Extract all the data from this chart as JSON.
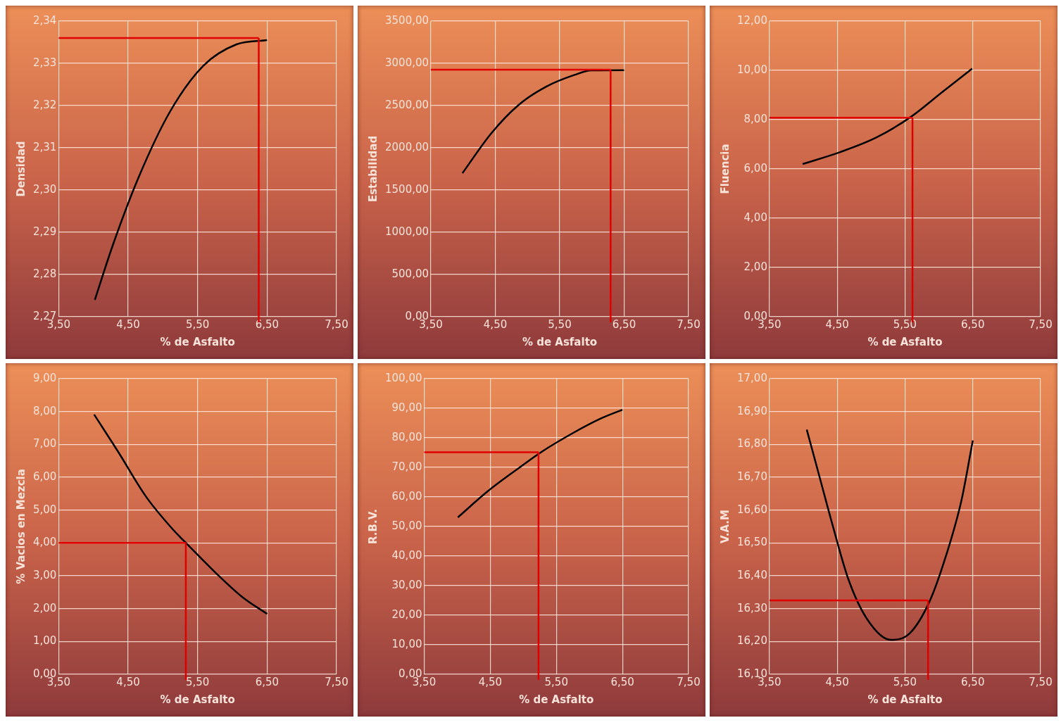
{
  "chart_data": [
    {
      "type": "line",
      "xlabel": "% de Asfalto",
      "ylabel": "Densidad",
      "x": [
        4.02,
        4.28,
        4.65,
        5.1,
        5.58,
        6.06,
        6.5
      ],
      "values": [
        2.274,
        2.287,
        2.303,
        2.3185,
        2.3294,
        2.3345,
        2.3355
      ],
      "color": "#000000",
      "marker": "none",
      "grid": true,
      "xlim": [
        3.5,
        7.5
      ],
      "xticks": [
        {
          "value": 3.5,
          "label": "3,50"
        },
        {
          "value": 4.5,
          "label": "4,50"
        },
        {
          "value": 5.5,
          "label": "5,50"
        },
        {
          "value": 6.5,
          "label": "6,50"
        },
        {
          "value": 7.5,
          "label": "7,50"
        }
      ],
      "ylim": [
        2.27,
        2.34
      ],
      "yticks": [
        {
          "value": 2.27,
          "label": "2,27"
        },
        {
          "value": 2.28,
          "label": "2,28"
        },
        {
          "value": 2.29,
          "label": "2,29"
        },
        {
          "value": 2.3,
          "label": "2,30"
        },
        {
          "value": 2.31,
          "label": "2,31"
        },
        {
          "value": 2.32,
          "label": "2,32"
        },
        {
          "value": 2.33,
          "label": "2,33"
        },
        {
          "value": 2.34,
          "label": "2,34"
        }
      ],
      "ref_lines": [
        {
          "axis": "y",
          "value": 2.336,
          "color": "#e00000"
        },
        {
          "axis": "x",
          "value": 6.38,
          "color": "#e00000"
        }
      ]
    },
    {
      "type": "line",
      "xlabel": "% de Asfalto",
      "ylabel": "Estabilidad",
      "x": [
        3.99,
        4.43,
        4.86,
        5.29,
        5.73,
        5.99,
        6.5
      ],
      "values": [
        1700,
        2165,
        2506,
        2724,
        2863,
        2916,
        2919
      ],
      "color": "#000000",
      "marker": "none",
      "grid": true,
      "xlim": [
        3.5,
        7.5
      ],
      "xticks": [
        {
          "value": 3.5,
          "label": "3,50"
        },
        {
          "value": 4.5,
          "label": "4,50"
        },
        {
          "value": 5.5,
          "label": "5,50"
        },
        {
          "value": 6.5,
          "label": "6,50"
        },
        {
          "value": 7.5,
          "label": "7,50"
        }
      ],
      "ylim": [
        0,
        3500
      ],
      "yticks": [
        {
          "value": 0,
          "label": "0,00"
        },
        {
          "value": 500,
          "label": "500,00"
        },
        {
          "value": 1000,
          "label": "1000,00"
        },
        {
          "value": 1500,
          "label": "1500,00"
        },
        {
          "value": 2000,
          "label": "2000,00"
        },
        {
          "value": 2500,
          "label": "2500,00"
        },
        {
          "value": 3000,
          "label": "3000,00"
        },
        {
          "value": 3500,
          "label": "3500,00"
        }
      ],
      "ref_lines": [
        {
          "axis": "y",
          "value": 2925,
          "color": "#e00000"
        },
        {
          "axis": "x",
          "value": 6.29,
          "color": "#e00000"
        }
      ]
    },
    {
      "type": "line",
      "xlabel": "% de Asfalto",
      "ylabel": "Fluencia",
      "x": [
        3.99,
        4.55,
        5.08,
        5.6,
        6.04,
        6.49
      ],
      "values": [
        6.2,
        6.69,
        7.28,
        8.14,
        9.1,
        10.07
      ],
      "color": "#000000",
      "marker": "none",
      "grid": true,
      "xlim": [
        3.5,
        7.5
      ],
      "xticks": [
        {
          "value": 3.5,
          "label": "3,50"
        },
        {
          "value": 4.5,
          "label": "4,50"
        },
        {
          "value": 5.5,
          "label": "5,50"
        },
        {
          "value": 6.5,
          "label": "6,50"
        },
        {
          "value": 7.5,
          "label": "7,50"
        }
      ],
      "ylim": [
        0,
        12
      ],
      "yticks": [
        {
          "value": 0,
          "label": "0,00"
        },
        {
          "value": 2,
          "label": "2,00"
        },
        {
          "value": 4,
          "label": "4,00"
        },
        {
          "value": 6,
          "label": "6,00"
        },
        {
          "value": 8,
          "label": "8,00"
        },
        {
          "value": 10,
          "label": "10,00"
        },
        {
          "value": 12,
          "label": "12,00"
        }
      ],
      "ref_lines": [
        {
          "axis": "y",
          "value": 8.08,
          "color": "#e00000"
        },
        {
          "axis": "x",
          "value": 5.61,
          "color": "#e00000"
        }
      ]
    },
    {
      "type": "line",
      "xlabel": "% de Asfalto",
      "ylabel": "% Vacios en Mezcla",
      "x": [
        4.01,
        4.36,
        4.75,
        5.14,
        5.37,
        5.76,
        6.15,
        6.5
      ],
      "values": [
        7.91,
        6.76,
        5.43,
        4.42,
        3.92,
        3.09,
        2.34,
        1.84
      ],
      "color": "#000000",
      "marker": "none",
      "grid": true,
      "xlim": [
        3.5,
        7.5
      ],
      "xticks": [
        {
          "value": 3.5,
          "label": "3,50"
        },
        {
          "value": 4.5,
          "label": "4,50"
        },
        {
          "value": 5.5,
          "label": "5,50"
        },
        {
          "value": 6.5,
          "label": "6,50"
        },
        {
          "value": 7.5,
          "label": "7,50"
        }
      ],
      "ylim": [
        0,
        9
      ],
      "yticks": [
        {
          "value": 0,
          "label": "0,00"
        },
        {
          "value": 1,
          "label": "1,00"
        },
        {
          "value": 2,
          "label": "2,00"
        },
        {
          "value": 3,
          "label": "3,00"
        },
        {
          "value": 4,
          "label": "4,00"
        },
        {
          "value": 5,
          "label": "5,00"
        },
        {
          "value": 6,
          "label": "6,00"
        },
        {
          "value": 7,
          "label": "7,00"
        },
        {
          "value": 8,
          "label": "8,00"
        },
        {
          "value": 9,
          "label": "9,00"
        }
      ],
      "ref_lines": [
        {
          "axis": "y",
          "value": 4.0,
          "color": "#e00000"
        },
        {
          "axis": "x",
          "value": 5.33,
          "color": "#e00000"
        }
      ]
    },
    {
      "type": "line",
      "xlabel": "% de Asfalto",
      "ylabel": "R.B.V.",
      "x": [
        4.01,
        4.46,
        4.89,
        5.28,
        5.75,
        6.17,
        6.5
      ],
      "values": [
        53.1,
        61.9,
        69.1,
        75.3,
        81.6,
        86.5,
        89.5
      ],
      "color": "#000000",
      "marker": "none",
      "grid": true,
      "xlim": [
        3.5,
        7.5
      ],
      "xticks": [
        {
          "value": 3.5,
          "label": "3,50"
        },
        {
          "value": 4.5,
          "label": "4,50"
        },
        {
          "value": 5.5,
          "label": "5,50"
        },
        {
          "value": 6.5,
          "label": "6,50"
        },
        {
          "value": 7.5,
          "label": "7,50"
        }
      ],
      "ylim": [
        0,
        100
      ],
      "yticks": [
        {
          "value": 0,
          "label": "0,00"
        },
        {
          "value": 10,
          "label": "10,00"
        },
        {
          "value": 20,
          "label": "20,00"
        },
        {
          "value": 30,
          "label": "30,00"
        },
        {
          "value": 40,
          "label": "40,00"
        },
        {
          "value": 50,
          "label": "50,00"
        },
        {
          "value": 60,
          "label": "60,00"
        },
        {
          "value": 70,
          "label": "70,00"
        },
        {
          "value": 80,
          "label": "80,00"
        },
        {
          "value": 90,
          "label": "90,00"
        },
        {
          "value": 100,
          "label": "100,00"
        }
      ],
      "ref_lines": [
        {
          "axis": "y",
          "value": 75.1,
          "color": "#e00000"
        },
        {
          "axis": "x",
          "value": 5.23,
          "color": "#e00000"
        }
      ]
    },
    {
      "type": "line",
      "xlabel": "% de Asfalto",
      "ylabel": "V.A.M",
      "x": [
        4.05,
        4.24,
        4.43,
        4.67,
        4.95,
        5.29,
        5.57,
        5.86,
        6.1,
        6.33,
        6.5
      ],
      "values": [
        16.845,
        16.7,
        16.555,
        16.386,
        16.265,
        16.205,
        16.225,
        16.321,
        16.458,
        16.627,
        16.812
      ],
      "color": "#000000",
      "marker": "none",
      "grid": true,
      "xlim": [
        3.5,
        7.5
      ],
      "xticks": [
        {
          "value": 3.5,
          "label": "3,50"
        },
        {
          "value": 4.5,
          "label": "4,50"
        },
        {
          "value": 5.5,
          "label": "5,50"
        },
        {
          "value": 6.5,
          "label": "6,50"
        },
        {
          "value": 7.5,
          "label": "7,50"
        }
      ],
      "ylim": [
        16.1,
        17.0
      ],
      "yticks": [
        {
          "value": 16.1,
          "label": "16,10"
        },
        {
          "value": 16.2,
          "label": "16,20"
        },
        {
          "value": 16.3,
          "label": "16,30"
        },
        {
          "value": 16.4,
          "label": "16,40"
        },
        {
          "value": 16.5,
          "label": "16,50"
        },
        {
          "value": 16.6,
          "label": "16,60"
        },
        {
          "value": 16.7,
          "label": "16,70"
        },
        {
          "value": 16.8,
          "label": "16,80"
        },
        {
          "value": 16.9,
          "label": "16,90"
        },
        {
          "value": 17.0,
          "label": "17,00"
        }
      ],
      "ref_lines": [
        {
          "axis": "y",
          "value": 16.325,
          "color": "#e00000"
        },
        {
          "axis": "x",
          "value": 5.84,
          "color": "#e00000"
        }
      ]
    }
  ]
}
